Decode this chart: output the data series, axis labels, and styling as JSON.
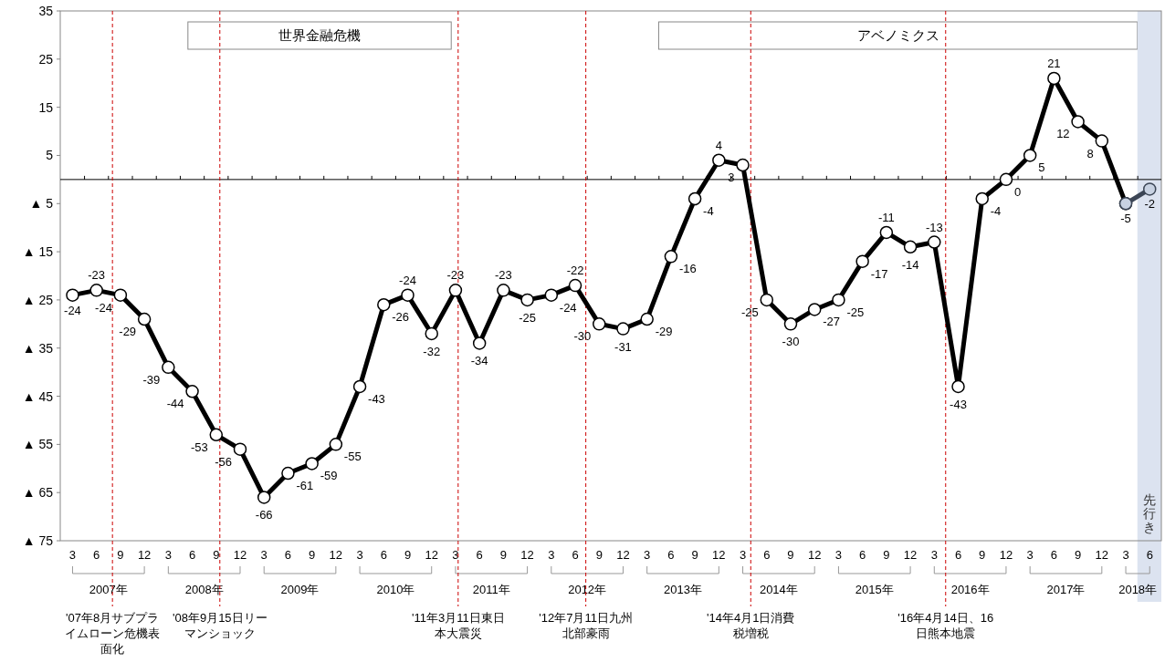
{
  "chart_data": {
    "type": "line",
    "marker": "circle",
    "line_style": "solid",
    "grid": false,
    "x": [
      "2007-03",
      "2007-06",
      "2007-09",
      "2007-12",
      "2008-03",
      "2008-06",
      "2008-09",
      "2008-12",
      "2009-03",
      "2009-06",
      "2009-09",
      "2009-12",
      "2010-03",
      "2010-06",
      "2010-09",
      "2010-12",
      "2011-03",
      "2011-06",
      "2011-09",
      "2011-12",
      "2012-03",
      "2012-06",
      "2012-09",
      "2012-12",
      "2013-03",
      "2013-06",
      "2013-09",
      "2013-12",
      "2014-03",
      "2014-06",
      "2014-09",
      "2014-12",
      "2015-03",
      "2015-06",
      "2015-09",
      "2015-12",
      "2016-03",
      "2016-06",
      "2016-09",
      "2016-12",
      "2017-03",
      "2017-06",
      "2017-09",
      "2017-12",
      "2018-03"
    ],
    "series": [
      {
        "color": "#000000",
        "values": [
          -24,
          -23,
          -24,
          -29,
          -39,
          -44,
          -53,
          -56,
          -66,
          -61,
          -59,
          -55,
          -43,
          -26,
          -24,
          -32,
          -23,
          -34,
          -23,
          -25,
          -24,
          -22,
          -30,
          -31,
          -29,
          -16,
          -4,
          4,
          3,
          -25,
          -30,
          -27,
          -25,
          -17,
          -11,
          -14,
          -13,
          -43,
          -4,
          0,
          5,
          21,
          12,
          8,
          -5
        ],
        "value_labels": [
          "-24",
          "-23",
          "-24",
          "-29",
          "-39",
          "-44",
          "-53",
          "-56",
          "-66",
          "-61",
          "-59",
          "-55",
          "-43",
          "-26",
          "-24",
          "-32",
          "-23",
          "-34",
          "-23",
          "-25",
          "-24",
          "-22",
          "-30",
          "-31",
          "-29",
          "-16",
          "-4",
          "4",
          "3",
          "-25",
          "-30",
          "-27",
          "-25",
          "-17",
          "-11",
          "-14",
          "-13",
          "-43",
          "-4",
          "0",
          "5",
          "21",
          "12",
          "8",
          "-5"
        ]
      },
      {
        "color": "#3c4656",
        "x": [
          "2018-03",
          "2018-06"
        ],
        "values": [
          -5,
          -2
        ],
        "value_labels": [
          null,
          "-2"
        ]
      }
    ],
    "xlim": [
      "2007-01-15",
      "2018-07-15"
    ],
    "xticks": [
      {
        "value": "2007-03",
        "label": "3"
      },
      {
        "value": "2007-06",
        "label": "6"
      },
      {
        "value": "2007-09",
        "label": "9"
      },
      {
        "value": "2007-12",
        "label": "12"
      },
      {
        "value": "2008-03",
        "label": "3"
      },
      {
        "value": "2008-06",
        "label": "6"
      },
      {
        "value": "2008-09",
        "label": "9"
      },
      {
        "value": "2008-12",
        "label": "12"
      },
      {
        "value": "2009-03",
        "label": "3"
      },
      {
        "value": "2009-06",
        "label": "6"
      },
      {
        "value": "2009-09",
        "label": "9"
      },
      {
        "value": "2009-12",
        "label": "12"
      },
      {
        "value": "2010-03",
        "label": "3"
      },
      {
        "value": "2010-06",
        "label": "6"
      },
      {
        "value": "2010-09",
        "label": "9"
      },
      {
        "value": "2010-12",
        "label": "12"
      },
      {
        "value": "2011-03",
        "label": "3"
      },
      {
        "value": "2011-06",
        "label": "6"
      },
      {
        "value": "2011-09",
        "label": "9"
      },
      {
        "value": "2011-12",
        "label": "12"
      },
      {
        "value": "2012-03",
        "label": "3"
      },
      {
        "value": "2012-06",
        "label": "6"
      },
      {
        "value": "2012-09",
        "label": "9"
      },
      {
        "value": "2012-12",
        "label": "12"
      },
      {
        "value": "2013-03",
        "label": "3"
      },
      {
        "value": "2013-06",
        "label": "6"
      },
      {
        "value": "2013-09",
        "label": "9"
      },
      {
        "value": "2013-12",
        "label": "12"
      },
      {
        "value": "2014-03",
        "label": "3"
      },
      {
        "value": "2014-06",
        "label": "6"
      },
      {
        "value": "2014-09",
        "label": "9"
      },
      {
        "value": "2014-12",
        "label": "12"
      },
      {
        "value": "2015-03",
        "label": "3"
      },
      {
        "value": "2015-06",
        "label": "6"
      },
      {
        "value": "2015-09",
        "label": "9"
      },
      {
        "value": "2015-12",
        "label": "12"
      },
      {
        "value": "2016-03",
        "label": "3"
      },
      {
        "value": "2016-06",
        "label": "6"
      },
      {
        "value": "2016-09",
        "label": "9"
      },
      {
        "value": "2016-12",
        "label": "12"
      },
      {
        "value": "2017-03",
        "label": "3"
      },
      {
        "value": "2017-06",
        "label": "6"
      },
      {
        "value": "2017-09",
        "label": "9"
      },
      {
        "value": "2017-12",
        "label": "12"
      },
      {
        "value": "2018-03",
        "label": "3"
      },
      {
        "value": "2018-06",
        "label": "6"
      }
    ],
    "ylim": [
      -75,
      35
    ],
    "yticks": [
      35,
      25,
      15,
      5,
      {
        "value": -5,
        "label": "▲ 5"
      },
      {
        "value": -15,
        "label": "▲ 15"
      },
      {
        "value": -25,
        "label": "▲ 25"
      },
      {
        "value": -35,
        "label": "▲ 35"
      },
      {
        "value": -45,
        "label": "▲ 45"
      },
      {
        "value": -55,
        "label": "▲ 55"
      },
      {
        "value": -65,
        "label": "▲ 65"
      },
      {
        "value": -75,
        "label": "▲ 75"
      }
    ],
    "ref_lines": [
      {
        "axis": "y",
        "value": 0,
        "color": "#000000",
        "line_style": "solid"
      },
      {
        "axis": "x",
        "value": "2007-08",
        "label": "'07年8月サブプライムローン危機表面化",
        "color": "#cc0000",
        "line_style": "dashed"
      },
      {
        "axis": "x",
        "value": "2008-09-15",
        "label": "'08年9月15日リーマンショック",
        "color": "#cc0000",
        "line_style": "dashed"
      },
      {
        "axis": "x",
        "value": "2011-03-11",
        "label": "'11年3月11日東日本大震災",
        "color": "#cc0000",
        "line_style": "dashed"
      },
      {
        "axis": "x",
        "value": "2012-07-11",
        "label": "'12年7月11日九州北部豪雨",
        "color": "#cc0000",
        "line_style": "dashed"
      },
      {
        "axis": "x",
        "value": "2014-04-01",
        "label": "'14年4月1日消費税増税",
        "color": "#cc0000",
        "line_style": "dashed"
      },
      {
        "axis": "x",
        "value": "2016-04-14",
        "label": "'16年4月14日、16日熊本地震",
        "color": "#cc0000",
        "line_style": "dashed"
      }
    ],
    "bands": [
      {
        "axis": "x",
        "from": "2008-05-15",
        "to": "2011-02-15",
        "label": "世界金融危機",
        "color": "#ffffff"
      },
      {
        "axis": "x",
        "from": "2013-04-15",
        "to": "2018-04-15",
        "label": "アベノミクス",
        "color": "#ffffff"
      },
      {
        "axis": "x",
        "from": "2018-04-15",
        "to": "2018-07-15",
        "label": "先行き",
        "color": "#dce3f0"
      }
    ],
    "annotations": [
      "2007年",
      "2008年",
      "2009年",
      "2010年",
      "2011年",
      "2012年",
      "2013年",
      "2014年",
      "2015年",
      "2016年",
      "2017年",
      "2018年"
    ]
  }
}
